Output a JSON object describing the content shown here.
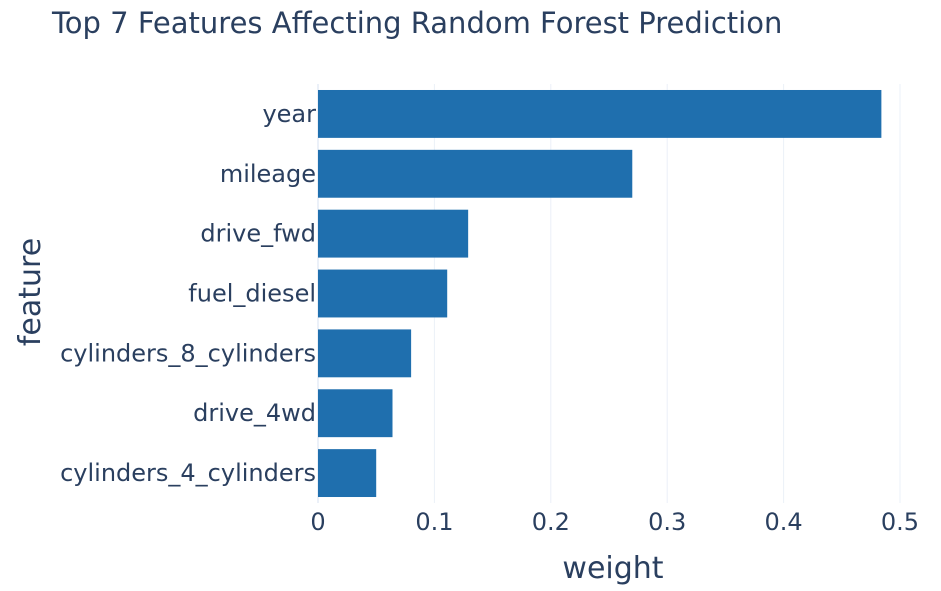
{
  "chart_data": {
    "type": "bar",
    "orientation": "horizontal",
    "title": "Top 7 Features Affecting Random Forest Prediction",
    "xlabel": "weight",
    "ylabel": "feature",
    "categories": [
      "year",
      "mileage",
      "drive_fwd",
      "fuel_diesel",
      "cylinders_8_cylinders",
      "drive_4wd",
      "cylinders_4_cylinders"
    ],
    "values": [
      0.484,
      0.27,
      0.129,
      0.111,
      0.08,
      0.064,
      0.05
    ],
    "xlim": [
      0,
      0.5
    ],
    "xticks": [
      0,
      0.1,
      0.2,
      0.3,
      0.4,
      0.5
    ],
    "xtick_labels": [
      "0",
      "0.1",
      "0.2",
      "0.3",
      "0.4",
      "0.5"
    ],
    "grid": true,
    "bar_color": "#1f6fae",
    "text_color": "#2a3f5f",
    "grid_color": "#ebf0f8"
  }
}
